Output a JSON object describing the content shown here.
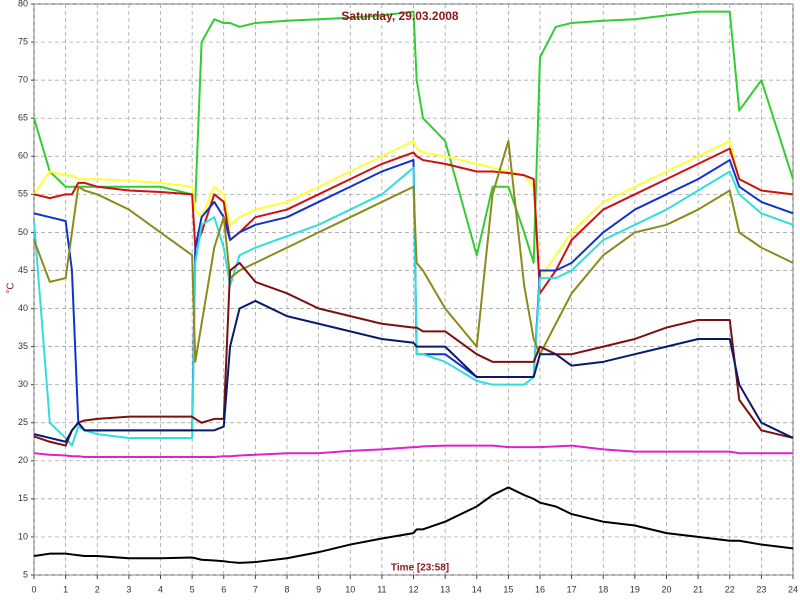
{
  "chart_data": {
    "type": "line",
    "title": "Saturday, 29.03.2008",
    "y_label": "°C",
    "x_label": "Time [23:58]",
    "grid": true,
    "xlim": [
      0,
      24
    ],
    "ylim": [
      5,
      80
    ],
    "xticks": [
      0,
      1,
      2,
      3,
      4,
      5,
      6,
      7,
      8,
      9,
      10,
      11,
      12,
      13,
      14,
      15,
      16,
      17,
      18,
      19,
      20,
      21,
      22,
      23,
      24
    ],
    "yticks": [
      5,
      10,
      15,
      20,
      25,
      30,
      35,
      40,
      45,
      50,
      55,
      60,
      65,
      70,
      75,
      80
    ],
    "x": [
      0,
      0.5,
      1,
      1.2,
      1.4,
      1.6,
      2,
      3,
      4,
      5,
      5.1,
      5.3,
      5.7,
      6,
      6.2,
      6.5,
      7,
      8,
      9,
      10,
      11,
      12,
      12.1,
      12.3,
      13,
      14,
      14.5,
      15,
      15.5,
      15.8,
      16,
      16.5,
      17,
      18,
      19,
      20,
      21,
      22,
      22.3,
      23,
      24
    ],
    "series": [
      {
        "color": "#33cc33",
        "values": [
          65,
          58,
          56,
          56,
          56,
          56,
          56,
          56,
          56,
          55,
          54,
          75,
          78,
          77.5,
          77.5,
          77,
          77.5,
          77.8,
          78,
          78.2,
          78.5,
          79,
          70,
          65,
          62,
          47,
          56,
          56,
          50,
          46,
          73,
          77,
          77.5,
          77.8,
          78,
          78.5,
          79,
          79,
          66,
          70,
          57
        ]
      },
      {
        "color": "#ffff33",
        "values": [
          55,
          58,
          57.5,
          57.5,
          57,
          57,
          57,
          56.8,
          56.5,
          56,
          53,
          52,
          56,
          55,
          51,
          52,
          53,
          54,
          56,
          58,
          60,
          62,
          61,
          60.5,
          60,
          59,
          58.5,
          58,
          57.5,
          56,
          44,
          47,
          50,
          54,
          56,
          58,
          60,
          62,
          57,
          55.5,
          55
        ]
      },
      {
        "color": "#cc1111",
        "values": [
          55,
          54.5,
          55,
          55,
          56.5,
          56.5,
          56,
          55.5,
          55.3,
          55,
          48,
          50,
          55,
          54,
          49,
          50,
          52,
          53,
          55,
          57,
          59,
          60.5,
          60,
          59.5,
          59,
          58,
          58,
          57.8,
          57.5,
          57,
          42,
          45,
          49,
          53,
          55,
          57,
          59,
          61,
          57,
          55.5,
          55
        ]
      },
      {
        "color": "#1133cc",
        "values": [
          52.5,
          52,
          51.5,
          45,
          25,
          24,
          24,
          24,
          24,
          24,
          48,
          52,
          54,
          52,
          49,
          50,
          51,
          52,
          54,
          56,
          58,
          59.5,
          34,
          34,
          34,
          31,
          31,
          31,
          31,
          31,
          45,
          45,
          46,
          50,
          53,
          55,
          57,
          59.5,
          56,
          54,
          52.5
        ]
      },
      {
        "color": "#33dddd",
        "values": [
          51.5,
          25,
          23,
          22,
          24.5,
          24,
          23.5,
          23,
          23,
          23,
          46,
          51,
          52,
          48,
          43,
          47,
          48,
          49.5,
          51,
          53,
          55,
          58.5,
          34,
          34,
          33,
          30.5,
          30,
          30,
          30,
          31,
          44,
          44,
          45,
          49,
          51,
          53,
          55.5,
          58,
          55,
          52.5,
          51
        ]
      },
      {
        "color": "#8b8b1a",
        "values": [
          49,
          43.5,
          44,
          50,
          56,
          55.5,
          55,
          53,
          50,
          47,
          33,
          38,
          48,
          52,
          44,
          45,
          46,
          48,
          50,
          52,
          54,
          56,
          46,
          45,
          40,
          35,
          55,
          62,
          43,
          36,
          34,
          38,
          42,
          47,
          50,
          51,
          53,
          55.5,
          50,
          48,
          46
        ]
      },
      {
        "color": "#7a1010",
        "values": [
          23.2,
          22.5,
          22,
          24,
          25,
          25.3,
          25.5,
          25.8,
          25.8,
          25.8,
          25.5,
          25,
          25.5,
          25.5,
          45,
          46,
          43.5,
          42,
          40,
          39,
          38,
          37.5,
          37.5,
          37,
          37,
          34,
          33,
          33,
          33,
          33,
          35,
          34,
          34,
          35,
          36,
          37.5,
          38.5,
          38.5,
          28,
          24,
          23
        ]
      },
      {
        "color": "#0a1a6b",
        "values": [
          23.5,
          23,
          22.5,
          24,
          25,
          24,
          24,
          24,
          24,
          24,
          24,
          24,
          24,
          24.5,
          35,
          40,
          41,
          39,
          38,
          37,
          36,
          35.5,
          35,
          35,
          35,
          31,
          31,
          31,
          31,
          31,
          34,
          34,
          32.5,
          33,
          34,
          35,
          36,
          36,
          30,
          25,
          23
        ]
      },
      {
        "color": "#dd22cc",
        "values": [
          21,
          20.8,
          20.7,
          20.6,
          20.6,
          20.5,
          20.5,
          20.5,
          20.5,
          20.5,
          20.5,
          20.5,
          20.5,
          20.6,
          20.6,
          20.7,
          20.8,
          21,
          21,
          21.3,
          21.5,
          21.8,
          21.8,
          21.9,
          22,
          22,
          22,
          21.8,
          21.8,
          21.8,
          21.8,
          21.9,
          22,
          21.5,
          21.2,
          21.2,
          21.2,
          21.2,
          21,
          21,
          21
        ]
      },
      {
        "color": "#000000",
        "values": [
          7.5,
          7.8,
          7.8,
          7.7,
          7.6,
          7.5,
          7.5,
          7.2,
          7.2,
          7.3,
          7.2,
          7,
          6.9,
          6.8,
          6.7,
          6.6,
          6.7,
          7.2,
          8,
          9,
          9.8,
          10.5,
          11,
          11,
          12,
          14,
          15.5,
          16.5,
          15.5,
          15,
          14.5,
          14,
          13,
          12,
          11.5,
          10.5,
          10,
          9.5,
          9.5,
          9,
          8.5
        ]
      }
    ]
  }
}
